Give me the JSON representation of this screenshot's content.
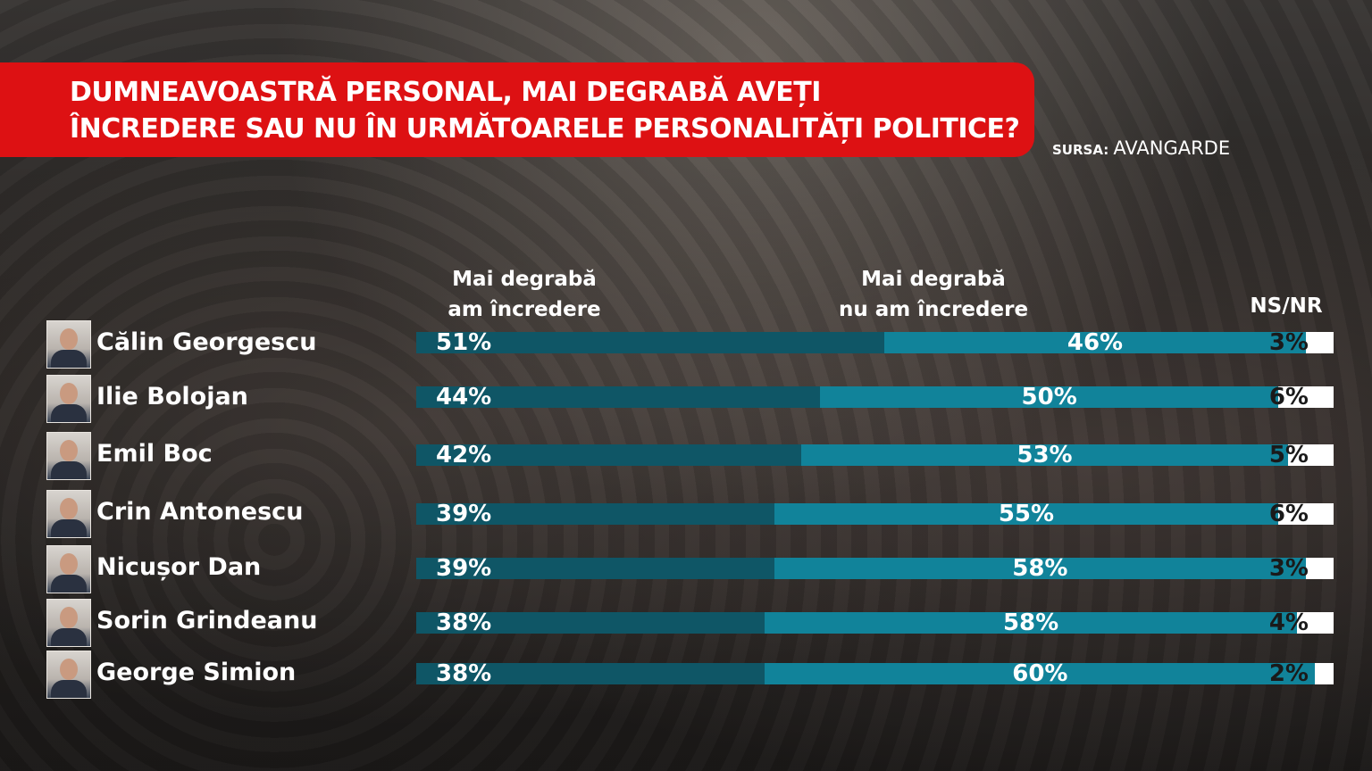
{
  "title": {
    "line1": "DUMNEAVOASTRĂ PERSONAL, MAI DEGRABĂ AVEȚI",
    "line2": "ÎNCREDERE SAU NU ÎN URMĂTOARELE PERSONALITĂȚI POLITICE?"
  },
  "source": {
    "label": "SURSA:",
    "value": "AVANGARDE"
  },
  "columns": {
    "trust": [
      "Mai degrabă",
      "am încredere"
    ],
    "distrust": [
      "Mai degrabă",
      "nu am încredere"
    ],
    "nsnr": "NS/NR"
  },
  "colors": {
    "title_band": "#dd1113",
    "trust": "#0f5666",
    "distrust": "#11839a",
    "nsnr": "#ffffff"
  },
  "chart_data": {
    "type": "bar",
    "stacked": true,
    "orientation": "horizontal",
    "unit": "%",
    "categories": [
      "Călin Georgescu",
      "Ilie Bolojan",
      "Emil Boc",
      "Crin Antonescu",
      "Nicușor Dan",
      "Sorin Grindeanu",
      "George Simion"
    ],
    "series": [
      {
        "name": "Mai degrabă am încredere",
        "values": [
          51,
          44,
          42,
          39,
          39,
          38,
          38
        ]
      },
      {
        "name": "Mai degrabă nu am încredere",
        "values": [
          46,
          50,
          53,
          55,
          58,
          58,
          60
        ]
      },
      {
        "name": "NS/NR",
        "values": [
          3,
          6,
          5,
          6,
          3,
          4,
          2
        ]
      }
    ],
    "labels": [
      [
        "51%",
        "46%",
        "3%"
      ],
      [
        "44%",
        "50%",
        "6%"
      ],
      [
        "42%",
        "53%",
        "5%"
      ],
      [
        "39%",
        "55%",
        "6%"
      ],
      [
        "39%",
        "58%",
        "3%"
      ],
      [
        "38%",
        "58%",
        "4%"
      ],
      [
        "38%",
        "60%",
        "2%"
      ]
    ]
  }
}
